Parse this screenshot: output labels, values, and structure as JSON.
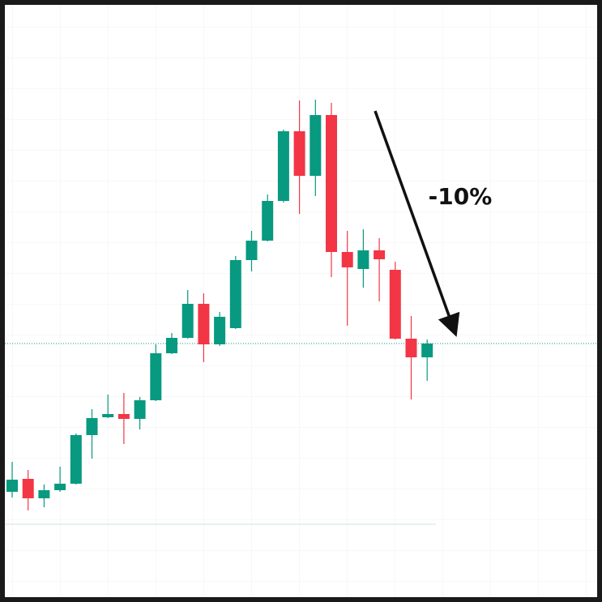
{
  "chart_data": {
    "type": "candlestick",
    "annotation": "-10%",
    "up_color": "#089981",
    "down_color": "#f23645",
    "ylim": [
      0,
      743
    ],
    "open": [
      136,
      152,
      128,
      138,
      146,
      206,
      228,
      232,
      226,
      249,
      307,
      326,
      368,
      318,
      338,
      422,
      446,
      495,
      581,
      526,
      601,
      432,
      411,
      434,
      410,
      325,
      302
    ],
    "high": [
      173,
      163,
      145,
      167,
      208,
      238,
      256,
      258,
      253,
      318,
      332,
      385,
      381,
      358,
      427,
      458,
      503,
      583,
      619,
      620,
      616,
      458,
      460,
      449,
      420,
      353,
      324
    ],
    "low": [
      129,
      113,
      117,
      136,
      145,
      177,
      227,
      195,
      213,
      248,
      306,
      325,
      296,
      316,
      337,
      408,
      445,
      493,
      479,
      501,
      401,
      341,
      388,
      371,
      324,
      250,
      273
    ],
    "close": [
      151,
      128,
      138,
      146,
      206,
      227,
      232,
      226,
      249,
      307,
      326,
      368,
      318,
      352,
      422,
      446,
      495,
      581,
      526,
      601,
      432,
      413,
      434,
      423,
      325,
      302,
      319
    ]
  }
}
